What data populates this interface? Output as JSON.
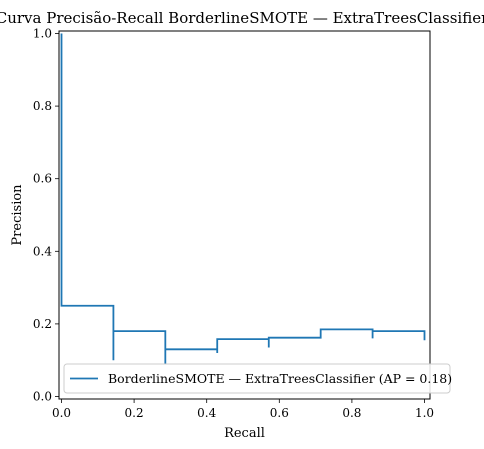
{
  "chart_data": {
    "type": "line",
    "title": "Curva Precisão-Recall BorderlineSMOTE — ExtraTreesClassifier",
    "xlabel": "Recall",
    "ylabel": "Precision",
    "xlim": [
      0,
      1
    ],
    "ylim": [
      0,
      1
    ],
    "xticks": [
      "0.0",
      "0.2",
      "0.4",
      "0.6",
      "0.8",
      "1.0"
    ],
    "yticks": [
      "0.0",
      "0.2",
      "0.4",
      "0.6",
      "0.8",
      "1.0"
    ],
    "grid": false,
    "legend_position": "lower right",
    "series": [
      {
        "name": "BorderlineSMOTE — ExtraTreesClassifier (AP = 0.18)",
        "color": "#1f77b4",
        "step": "post",
        "points": [
          [
            0.0,
            1.0
          ],
          [
            0.0,
            0.25
          ],
          [
            0.143,
            0.25
          ],
          [
            0.143,
            0.1
          ],
          [
            0.143,
            0.18
          ],
          [
            0.286,
            0.18
          ],
          [
            0.286,
            0.09
          ],
          [
            0.286,
            0.13
          ],
          [
            0.429,
            0.13
          ],
          [
            0.429,
            0.12
          ],
          [
            0.429,
            0.158
          ],
          [
            0.571,
            0.158
          ],
          [
            0.571,
            0.135
          ],
          [
            0.571,
            0.162
          ],
          [
            0.714,
            0.162
          ],
          [
            0.714,
            0.185
          ],
          [
            0.857,
            0.185
          ],
          [
            0.857,
            0.16
          ],
          [
            0.857,
            0.18
          ],
          [
            1.0,
            0.18
          ],
          [
            1.0,
            0.155
          ]
        ]
      }
    ]
  }
}
